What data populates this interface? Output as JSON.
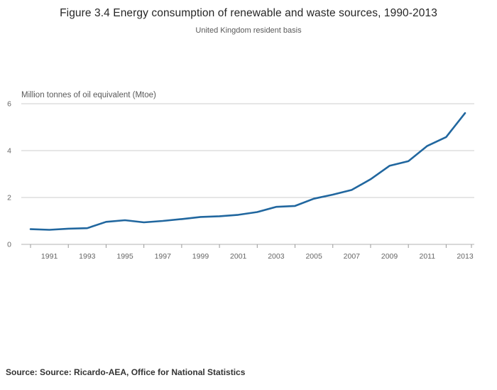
{
  "header": {
    "title": "Figure 3.4 Energy consumption of renewable and waste sources, 1990-2013",
    "subtitle": "United Kingdom resident basis"
  },
  "footer": {
    "source": "Source: Source: Ricardo-AEA, Office for National Statistics"
  },
  "chart_data": {
    "type": "line",
    "title": "Figure 3.4 Energy consumption of renewable and waste sources, 1990-2013",
    "subtitle": "United Kingdom resident basis",
    "ylabel": "Million tonnes of oil equivalent (Mtoe)",
    "xlabel": "",
    "x": [
      1990,
      1991,
      1992,
      1993,
      1994,
      1995,
      1996,
      1997,
      1998,
      1999,
      2000,
      2001,
      2002,
      2003,
      2004,
      2005,
      2006,
      2007,
      2008,
      2009,
      2010,
      2011,
      2012,
      2013
    ],
    "series": [
      {
        "name": "Energy consumption of renewable and waste sources",
        "values": [
          0.65,
          0.62,
          0.67,
          0.69,
          0.96,
          1.03,
          0.94,
          1.0,
          1.08,
          1.17,
          1.2,
          1.26,
          1.38,
          1.6,
          1.64,
          1.95,
          2.12,
          2.32,
          2.78,
          3.35,
          3.55,
          4.2,
          4.58,
          5.6
        ]
      }
    ],
    "ylim": [
      0,
      6
    ],
    "yticks": [
      0,
      2,
      4,
      6
    ],
    "xtick_labels": [
      "1991",
      "1993",
      "1995",
      "1997",
      "1999",
      "2001",
      "2003",
      "2005",
      "2007",
      "2009",
      "2011",
      "2013"
    ],
    "grid": true,
    "legend": false,
    "line_color": "#21679f",
    "grid_color": "#cccccc",
    "axis_color": "#b3b3b3",
    "tick_color": "#999999",
    "label_color": "#666666"
  }
}
